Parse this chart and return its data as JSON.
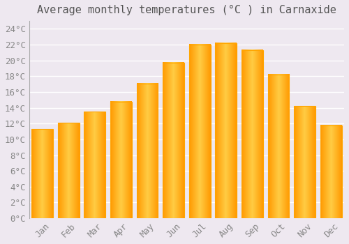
{
  "title": "Average monthly temperatures (°C ) in Carnaxide",
  "months": [
    "Jan",
    "Feb",
    "Mar",
    "Apr",
    "May",
    "Jun",
    "Jul",
    "Aug",
    "Sep",
    "Oct",
    "Nov",
    "Dec"
  ],
  "temperatures": [
    11.3,
    12.1,
    13.5,
    14.8,
    17.1,
    19.7,
    22.0,
    22.2,
    21.3,
    18.2,
    14.2,
    11.8
  ],
  "bar_color_left": "#FFA500",
  "bar_color_mid": "#FFD050",
  "bar_color_right": "#FFA500",
  "background_color": "#EEE8F0",
  "plot_bg_color": "#EEE8F0",
  "grid_color": "#FFFFFF",
  "text_color": "#888888",
  "title_color": "#555555",
  "ylim": [
    0,
    25
  ],
  "ytick_step": 2,
  "title_fontsize": 11,
  "tick_fontsize": 9,
  "bar_width": 0.82
}
